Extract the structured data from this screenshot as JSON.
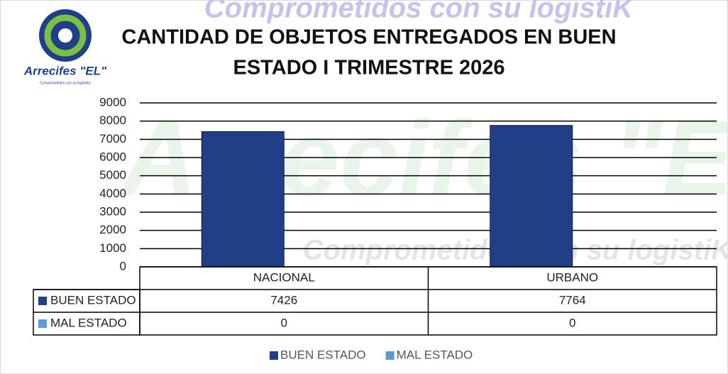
{
  "logo": {
    "name": "Arrecifes \"EL\"",
    "tagline": "Comprometidos con su logistiKa"
  },
  "watermark": {
    "top": "Comprometidos con su logistiK",
    "big": "Arrecifes \"EL\"",
    "middle": "Comprometidos con su logistiKa"
  },
  "chart_data": {
    "type": "bar",
    "title": [
      "CANTIDAD DE OBJETOS ENTREGADOS EN BUEN",
      "ESTADO I TRIMESTRE 2026"
    ],
    "categories": [
      "NACIONAL",
      "URBANO"
    ],
    "series": [
      {
        "name": "BUEN ESTADO",
        "color": "#203f86",
        "values": [
          7426,
          7764
        ]
      },
      {
        "name": "MAL ESTADO",
        "color": "#5b9bd5",
        "values": [
          0,
          0
        ]
      }
    ],
    "ylim": [
      0,
      9000
    ],
    "yticks": [
      0,
      1000,
      2000,
      3000,
      4000,
      5000,
      6000,
      7000,
      8000,
      9000
    ],
    "grid": true,
    "legend": "bottom"
  }
}
